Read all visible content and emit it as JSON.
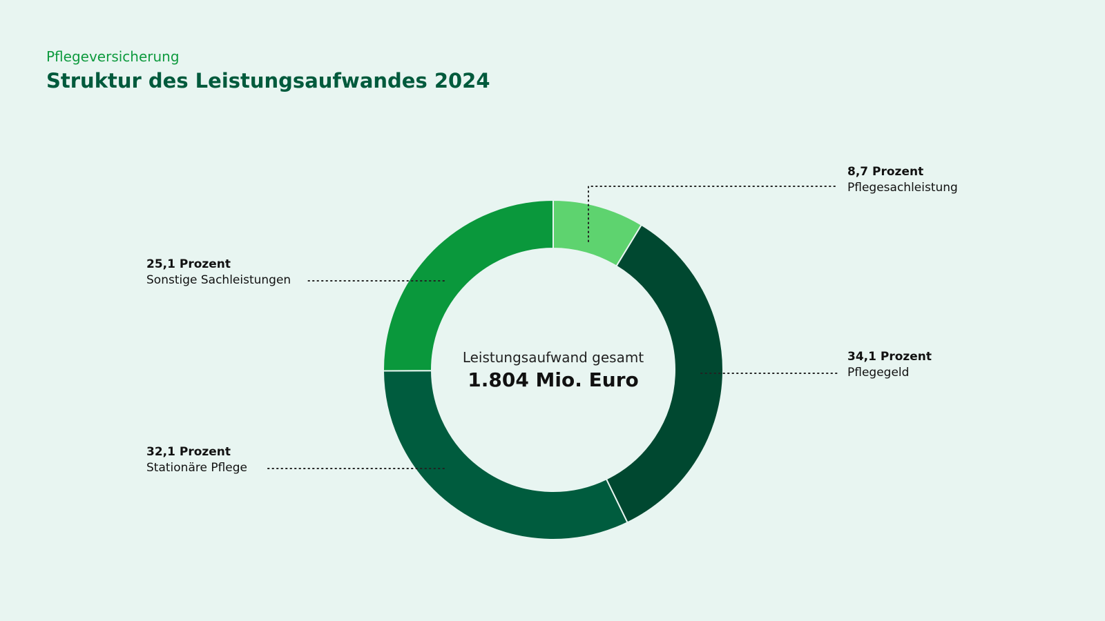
{
  "header": {
    "kicker": "Pflegeversicherung",
    "title": "Struktur des Leistungsaufwandes 2024"
  },
  "chart_data": {
    "type": "pie",
    "subtype": "donut",
    "center_label": "Leistungsaufwand gesamt",
    "center_value": "1.804 Mio. Euro",
    "unit": "Prozent",
    "slices": [
      {
        "name": "Pflegesachleistung",
        "value": 8.7,
        "value_label": "8,7 Prozent",
        "color": "#5ed36f"
      },
      {
        "name": "Pflegegeld",
        "value": 34.1,
        "value_label": "34,1 Prozent",
        "color": "#004830"
      },
      {
        "name": "Stationäre Pflege",
        "value": 32.1,
        "value_label": "32,1 Prozent",
        "color": "#005c3e"
      },
      {
        "name": "Sonstige Sachleistungen",
        "value": 25.1,
        "value_label": "25,1 Prozent",
        "color": "#0a983c"
      }
    ]
  }
}
